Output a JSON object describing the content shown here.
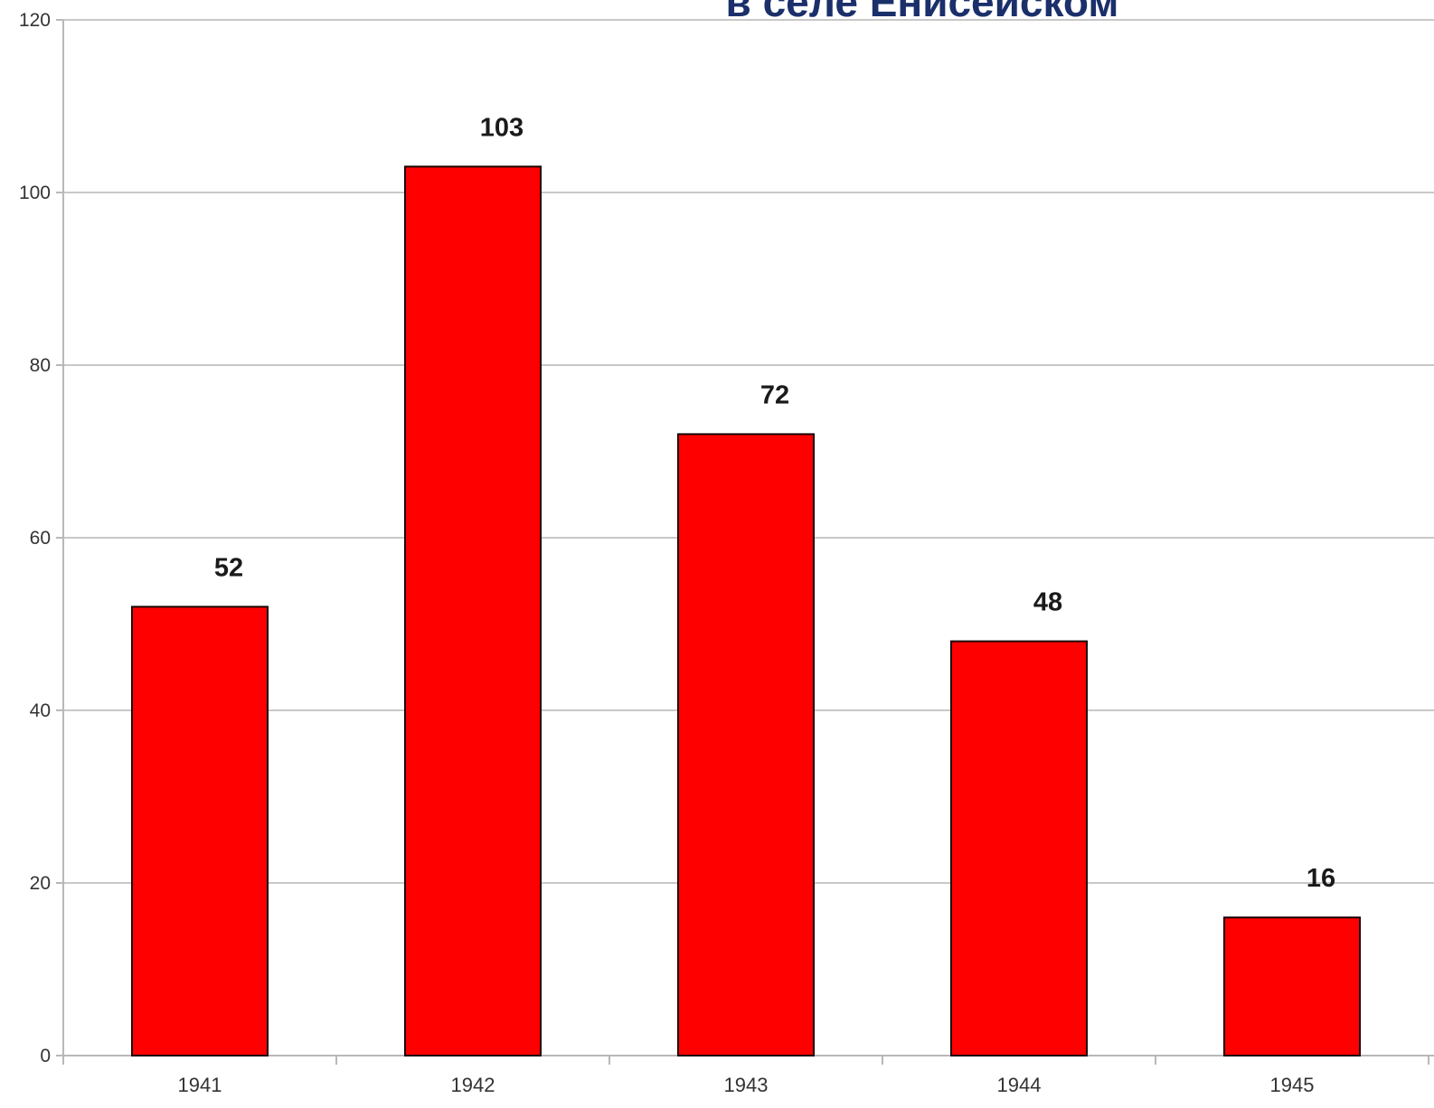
{
  "chart_data": {
    "type": "bar",
    "title": "в селе Енисейском",
    "categories": [
      "1941",
      "1942",
      "1943",
      "1944",
      "1945"
    ],
    "values": [
      52,
      103,
      72,
      48,
      16
    ],
    "data_labels": [
      "52",
      "103",
      "72",
      "48",
      "16"
    ],
    "y_ticks": [
      0,
      20,
      40,
      60,
      80,
      100,
      120
    ],
    "ylim": [
      0,
      120
    ],
    "xlabel": "",
    "ylabel": "",
    "grid": true,
    "legend": "none",
    "colors": {
      "bar": "#ff0000",
      "title": "#1b2f6b"
    }
  }
}
